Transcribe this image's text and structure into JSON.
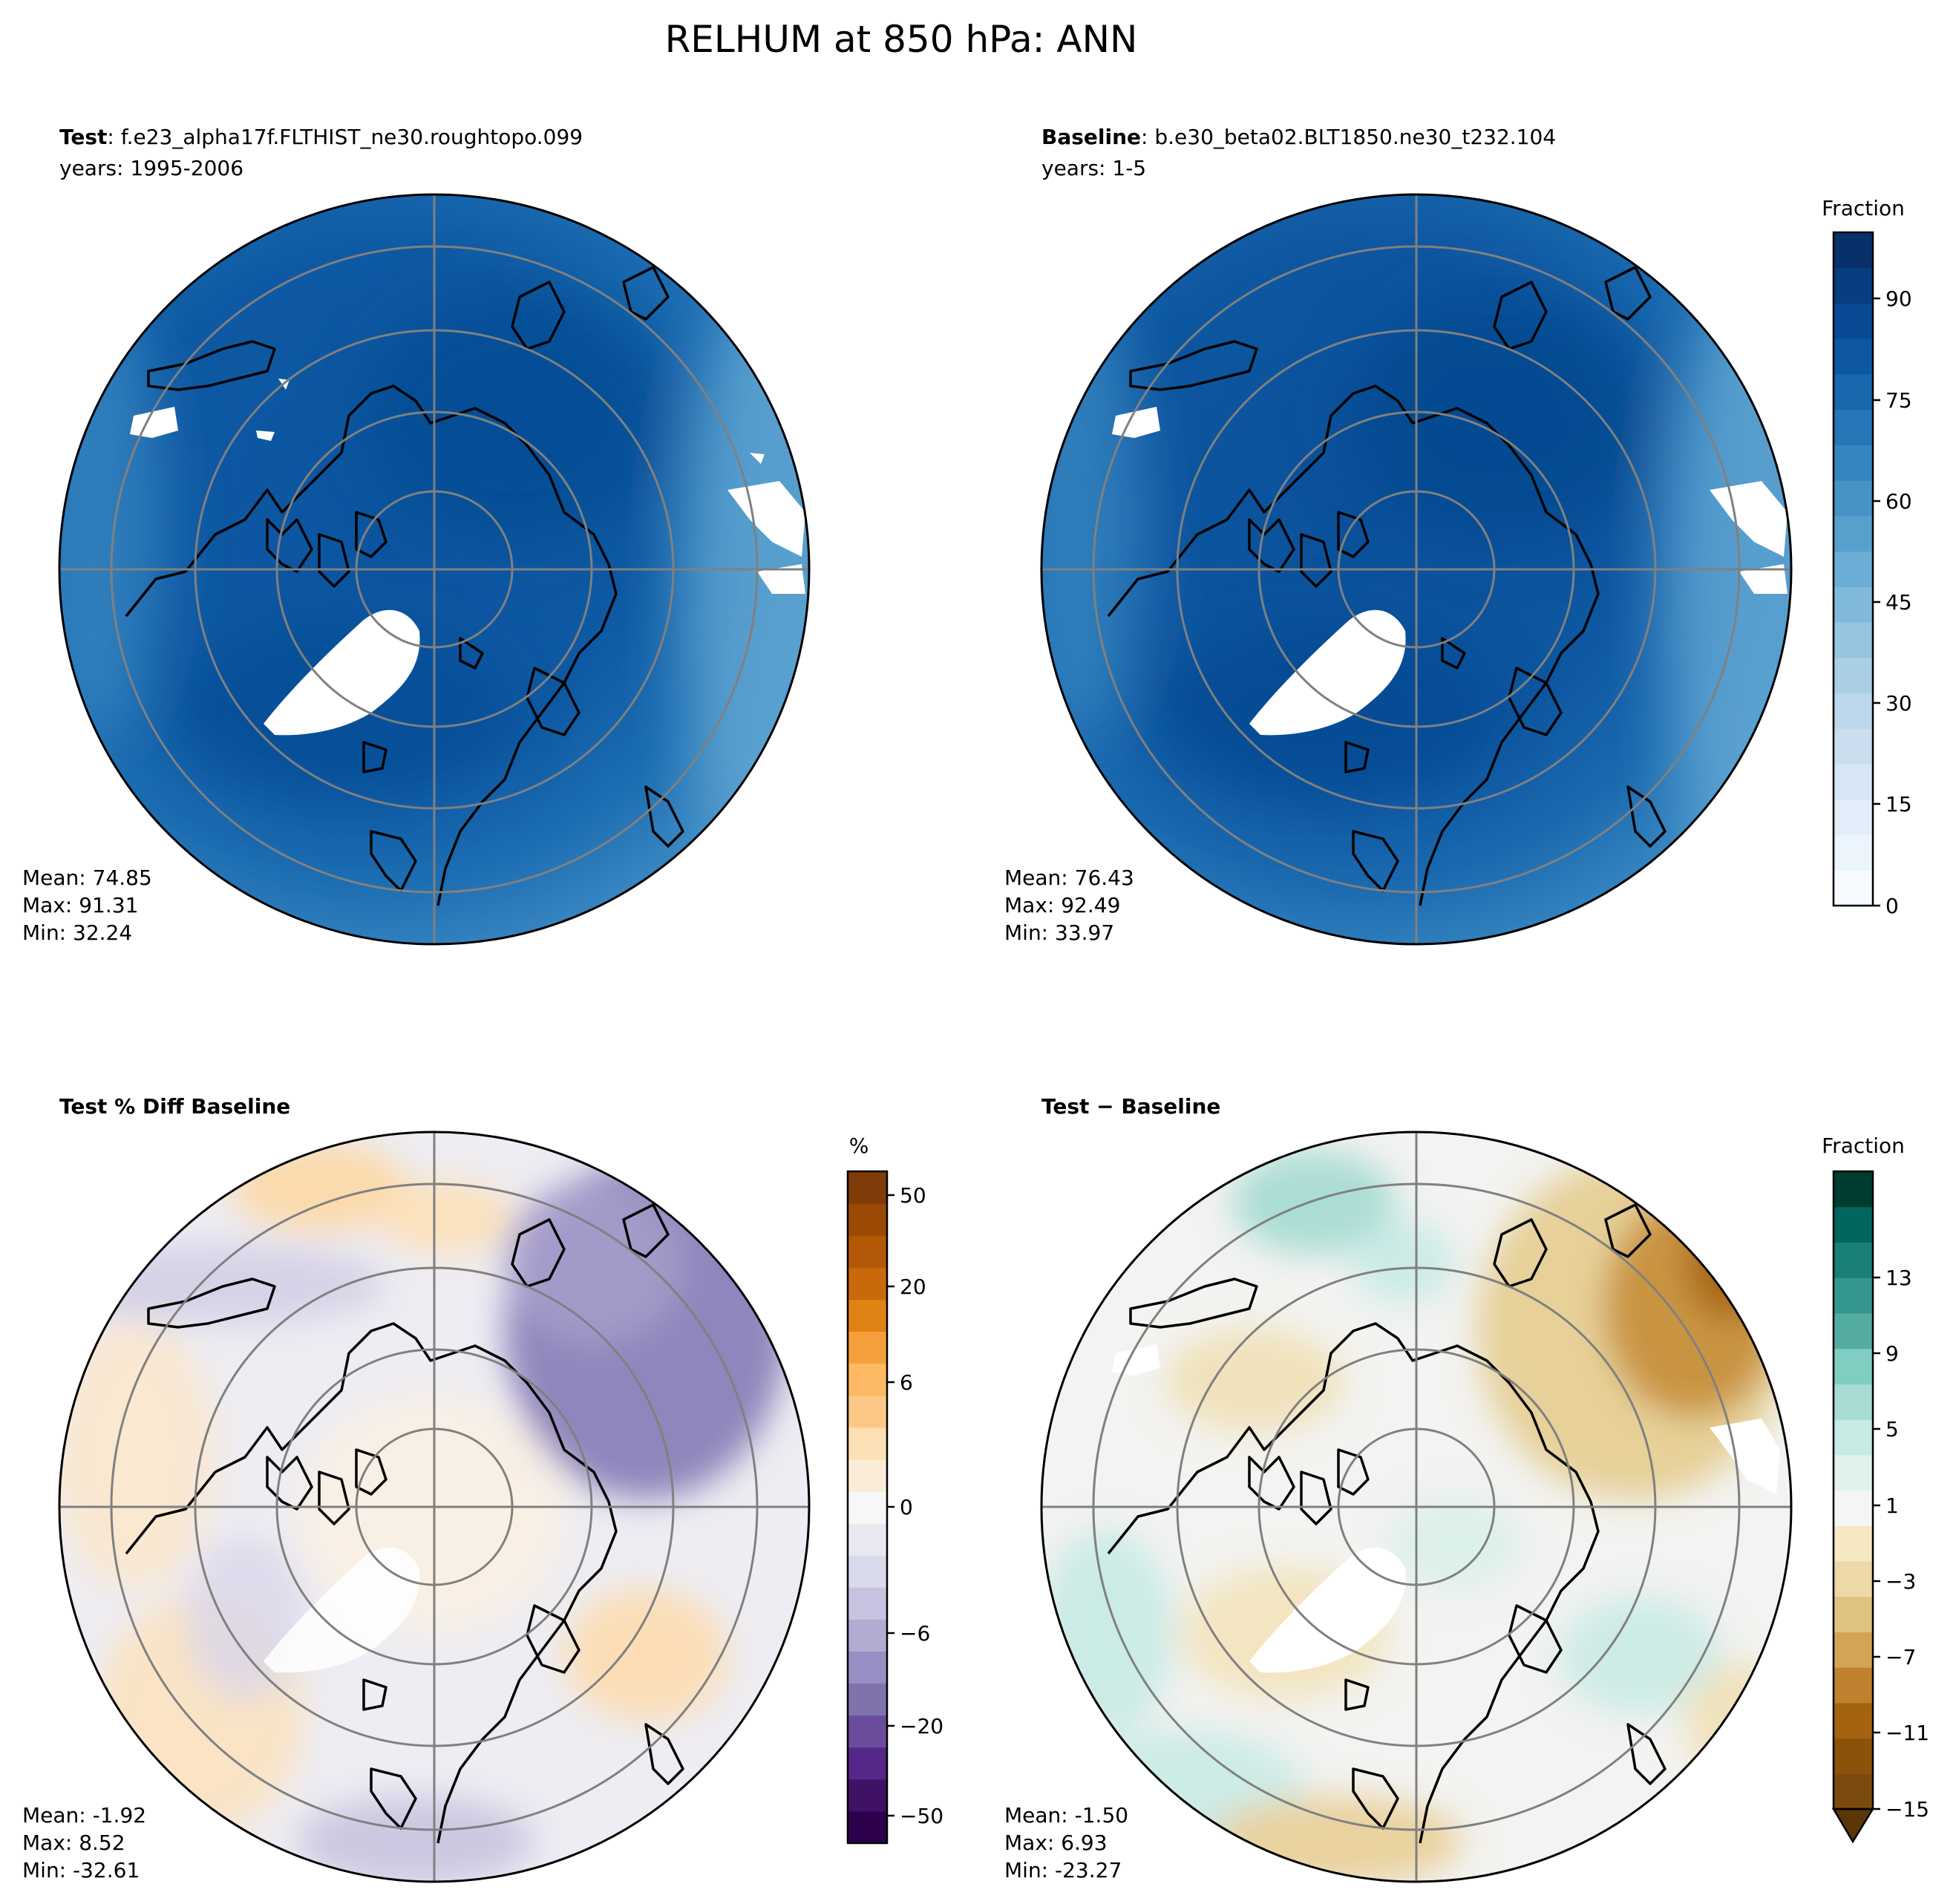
{
  "figure": {
    "title": "RELHUM at 850 hPa: ANN"
  },
  "panels": [
    {
      "id": "test",
      "label_bold": "Test",
      "label_rest": ": f.e23_alpha17f.FLTHIST_ne30.roughtopo.099",
      "subtitle": "years: 1995-2006",
      "stats": {
        "mean": "Mean: 74.85",
        "max": "Max: 91.31",
        "min": "Min: 32.24"
      }
    },
    {
      "id": "baseline",
      "label_bold": "Baseline",
      "label_rest": ": b.e30_beta02.BLT1850.ne30_t232.104",
      "subtitle": "years: 1-5",
      "stats": {
        "mean": "Mean: 76.43",
        "max": "Max: 92.49",
        "min": "Min: 33.97"
      }
    },
    {
      "id": "pctdiff",
      "label_bold": "Test % Diff Baseline",
      "label_rest": "",
      "subtitle": "",
      "stats": {
        "mean": "Mean: -1.92",
        "max": "Max:  8.52",
        "min": "Min: -32.61"
      }
    },
    {
      "id": "diff",
      "label_bold": "Test − Baseline",
      "label_rest": "",
      "subtitle": "",
      "stats": {
        "mean": "Mean: -1.50",
        "max": "Max:  6.93",
        "min": "Min: -23.27"
      }
    }
  ],
  "colorbars": [
    {
      "id": "cb-fraction-top",
      "title": "Fraction",
      "ticks": [
        "0",
        "15",
        "30",
        "45",
        "60",
        "75",
        "90"
      ],
      "colors": [
        "#f7fbff",
        "#ecf4fc",
        "#e1edf8",
        "#d6e6f4",
        "#cadef0",
        "#bcd7eb",
        "#aacfe5",
        "#95c5df",
        "#80b9da",
        "#6aaed6",
        "#57a0ce",
        "#4693c7",
        "#3585bf",
        "#2676b8",
        "#1967ad",
        "#0d58a1",
        "#084b94",
        "#083d7f",
        "#08306b"
      ]
    },
    {
      "id": "cb-percent",
      "title": "%",
      "ticks": [
        "−50",
        "−20",
        "−6",
        "0",
        "6",
        "20",
        "50"
      ],
      "colors": [
        "#2d004b",
        "#3f1266",
        "#542788",
        "#6b4b9c",
        "#8073ac",
        "#998ec3",
        "#b2abd2",
        "#c8c2e0",
        "#d8daeb",
        "#e8e8f1",
        "#f7f7f7",
        "#fbecd7",
        "#fee0b6",
        "#fdc886",
        "#fdb863",
        "#f6a03d",
        "#e08214",
        "#c9690c",
        "#b35806",
        "#9a4a05",
        "#7f3b08"
      ]
    },
    {
      "id": "cb-fraction-diff",
      "title": "Fraction",
      "ticks": [
        "−15",
        "−11",
        "−7",
        "−3",
        "1",
        "5",
        "9",
        "13"
      ],
      "colors": [
        "#7a4a0f",
        "#8c510a",
        "#a5620f",
        "#bf812d",
        "#d3a356",
        "#dfc27d",
        "#edd8a8",
        "#f6e8c3",
        "#f5f5f5",
        "#e0f1ee",
        "#c7eae5",
        "#a8dbd3",
        "#80cdc1",
        "#54aca1",
        "#35978f",
        "#1a7f74",
        "#01665e",
        "#003c30"
      ]
    }
  ],
  "chart_data": [
    {
      "type": "heatmap",
      "title": "Test: f.e23_alpha17f.FLTHIST_ne30.roughtopo.099",
      "subtitle": "years: 1995-2006",
      "colorbar_label": "Fraction",
      "range": [
        0,
        100
      ],
      "stats": {
        "mean": 74.85,
        "max": 91.31,
        "min": 32.24
      }
    },
    {
      "type": "heatmap",
      "title": "Baseline: b.e30_beta02.BLT1850.ne30_t232.104",
      "subtitle": "years: 1-5",
      "colorbar_label": "Fraction",
      "range": [
        0,
        100
      ],
      "stats": {
        "mean": 76.43,
        "max": 92.49,
        "min": 33.97
      }
    },
    {
      "type": "heatmap",
      "title": "Test % Diff Baseline",
      "colorbar_label": "%",
      "colorbar_ticks": [
        -50,
        -20,
        -6,
        0,
        6,
        20,
        50
      ],
      "stats": {
        "mean": -1.92,
        "max": 8.52,
        "min": -32.61
      }
    },
    {
      "type": "heatmap",
      "title": "Test − Baseline",
      "colorbar_label": "Fraction",
      "colorbar_ticks": [
        -15,
        -11,
        -7,
        -3,
        1,
        5,
        9,
        13
      ],
      "stats": {
        "mean": -1.5,
        "max": 6.93,
        "min": -23.27
      }
    }
  ]
}
